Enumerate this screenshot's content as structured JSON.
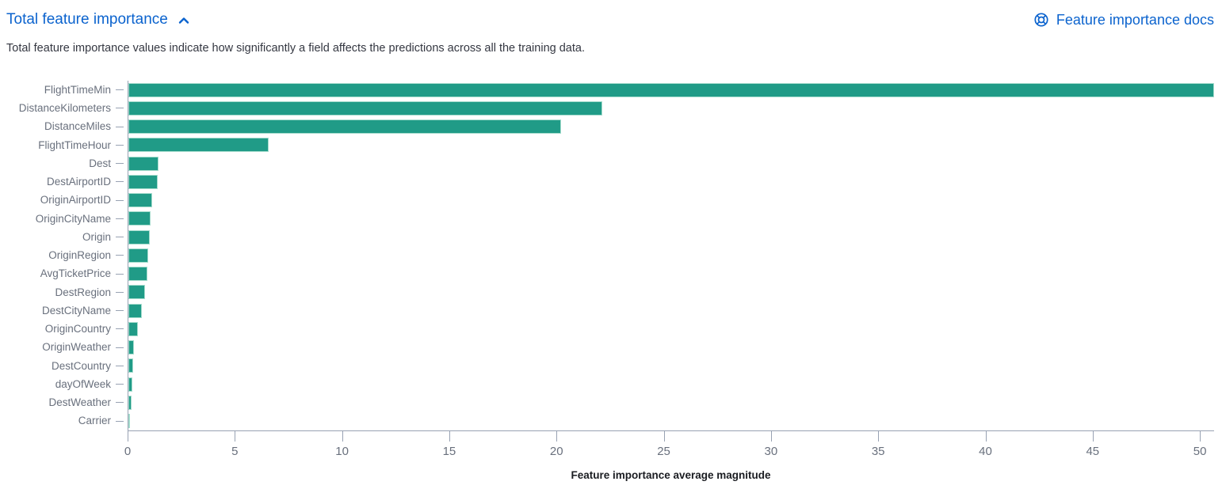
{
  "header": {
    "title": "Total feature importance",
    "collapse_icon": "chevron-up",
    "docs_link_label": "Feature importance docs",
    "docs_icon": "documentation-life-ring"
  },
  "description": "Total feature importance values indicate how significantly a field affects the predictions across all the training data.",
  "colors": {
    "link_blue": "#0b63ce",
    "bar_fill": "#209b87",
    "bar_border": "#a5dccd",
    "axis_line": "#98a2b3",
    "axis_text": "#69707d",
    "description_text": "#343741",
    "axis_title_text": "#1a1c21"
  },
  "chart_data": {
    "type": "bar",
    "orientation": "horizontal",
    "title": "Total feature importance",
    "xlabel": "Feature importance average magnitude",
    "ylabel": "",
    "xlim": [
      0,
      50.66
    ],
    "xticks": [
      0,
      5,
      10,
      15,
      20,
      25,
      30,
      35,
      40,
      45,
      50
    ],
    "grid": false,
    "legend": false,
    "categories": [
      "FlightTimeMin",
      "DistanceKilometers",
      "DistanceMiles",
      "FlightTimeHour",
      "Dest",
      "DestAirportID",
      "OriginAirportID",
      "OriginCityName",
      "Origin",
      "OriginRegion",
      "AvgTicketPrice",
      "DestRegion",
      "DestCityName",
      "OriginCountry",
      "OriginWeather",
      "DestCountry",
      "dayOfWeek",
      "DestWeather",
      "Carrier"
    ],
    "values": [
      50.66,
      22.1,
      20.2,
      6.55,
      1.4,
      1.37,
      1.12,
      1.02,
      1.0,
      0.93,
      0.9,
      0.76,
      0.64,
      0.45,
      0.26,
      0.22,
      0.2,
      0.14,
      0.07
    ]
  }
}
